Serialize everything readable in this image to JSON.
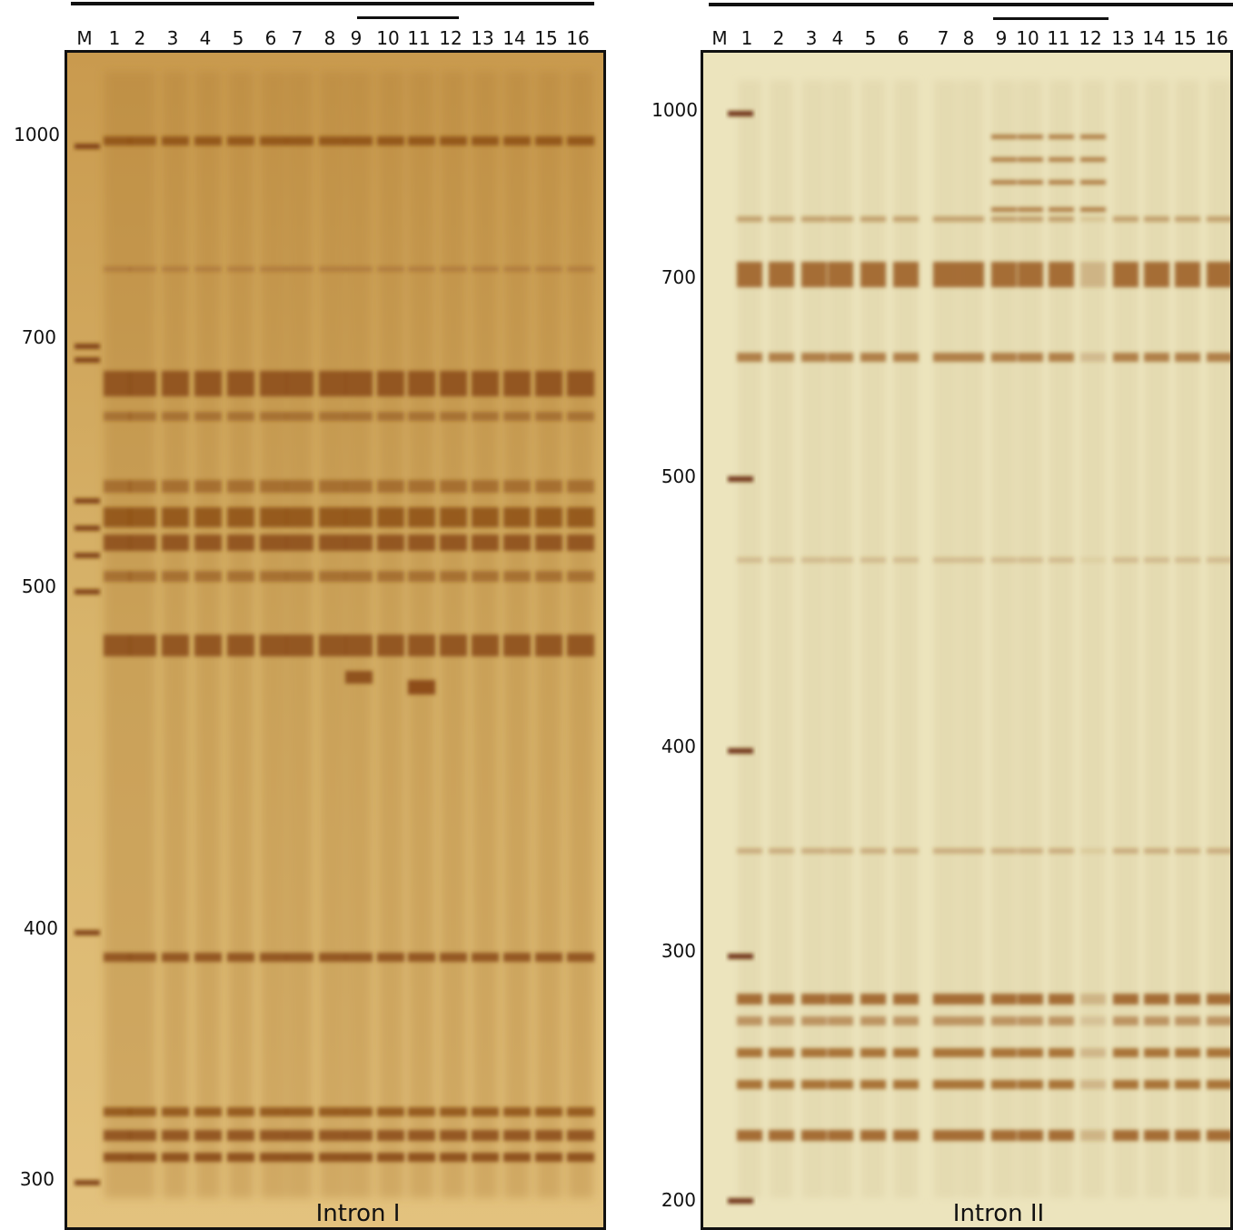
{
  "figure": {
    "panels": [
      {
        "id": "intron-1",
        "title": "Intron I",
        "lanes": [
          "M",
          "1",
          "2",
          "3",
          "4",
          "5",
          "6",
          "7",
          "8",
          "9",
          "10",
          "11",
          "12",
          "13",
          "14",
          "15",
          "16"
        ],
        "size_markers": [
          "1000",
          "700",
          "500",
          "400",
          "300"
        ],
        "gel_colors": {
          "background": "#d9b56c",
          "band": "#8a4a14",
          "marker_band": "#7a3a10"
        }
      },
      {
        "id": "intron-2",
        "title": "Intron II",
        "lanes": [
          "M",
          "1",
          "2",
          "3",
          "4",
          "5",
          "6",
          "7",
          "8",
          "9",
          "10",
          "11",
          "12",
          "13",
          "14",
          "15",
          "16"
        ],
        "size_markers": [
          "1000",
          "700",
          "500",
          "400",
          "300",
          "200"
        ],
        "gel_colors": {
          "background": "#ece4bd",
          "band": "#9a5a1c",
          "marker_band": "#6a2a0a"
        }
      }
    ]
  }
}
